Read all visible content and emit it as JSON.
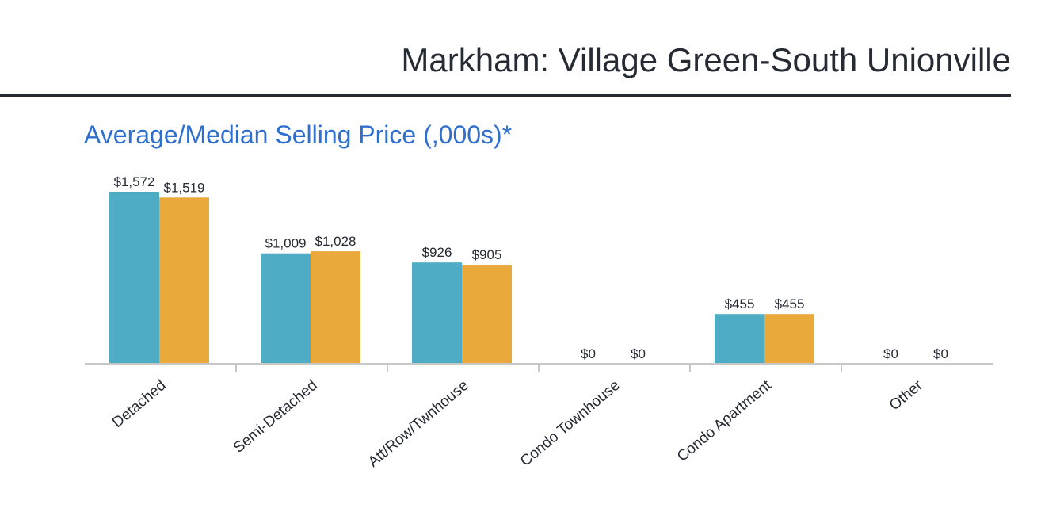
{
  "header": {
    "title": "Markham: Village Green-South Unionville"
  },
  "chart_data": {
    "type": "bar",
    "title": "Average/Median Selling Price (,000s)*",
    "xlabel": "",
    "ylabel": "",
    "ylim": [
      0,
      1600
    ],
    "grid": false,
    "categories": [
      "Detached",
      "Semi-Detached",
      "Att/Row/Twnhouse",
      "Condo Townhouse",
      "Condo Apartment",
      "Other"
    ],
    "series": [
      {
        "name": "Average",
        "color": "#4eacc5",
        "values": [
          1572,
          1009,
          926,
          0,
          455,
          0
        ],
        "labels": [
          "$1,572",
          "$1,009",
          "$926",
          "$0",
          "$455",
          "$0"
        ]
      },
      {
        "name": "Median",
        "color": "#e9a93b",
        "values": [
          1519,
          1028,
          905,
          0,
          455,
          0
        ],
        "labels": [
          "$1,519",
          "$1,028",
          "$905",
          "$0",
          "$455",
          "$0"
        ]
      }
    ],
    "axis_color": "#c8c8c8",
    "label_color": "#262a33"
  }
}
